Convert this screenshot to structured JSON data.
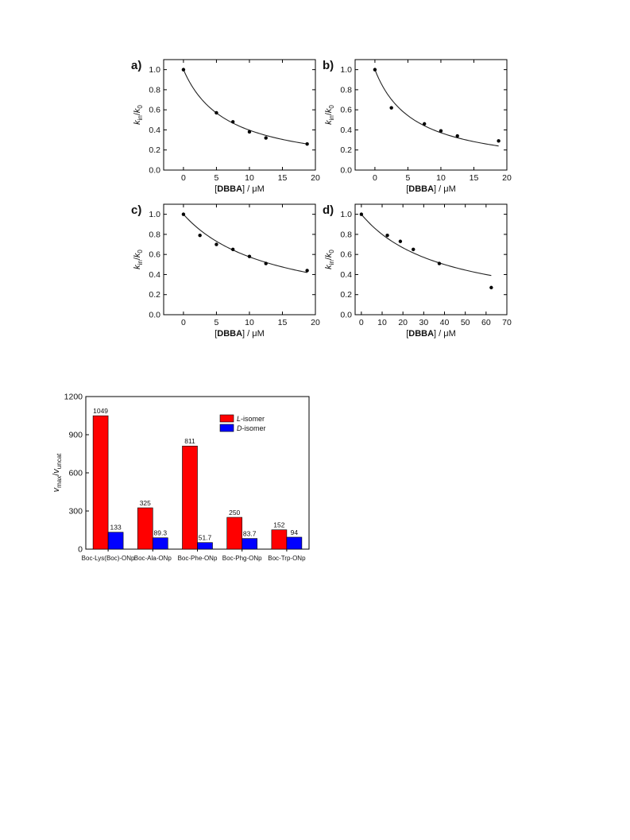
{
  "chart_data": [
    {
      "type": "scatter",
      "panel": "a)",
      "xlabel": "[DBBA] / μM",
      "ylabel": "kin/k0",
      "xlim": [
        -3,
        20
      ],
      "ylim": [
        0,
        1.1
      ],
      "xticks": [
        "0",
        "5",
        "10",
        "15",
        "20"
      ],
      "yticks": [
        "0.0",
        "0.2",
        "0.4",
        "0.6",
        "0.8",
        "1.0"
      ],
      "points": [
        {
          "x": 0,
          "y": 1.0
        },
        {
          "x": 5,
          "y": 0.57
        },
        {
          "x": 7.5,
          "y": 0.48
        },
        {
          "x": 10,
          "y": 0.38
        },
        {
          "x": 12.5,
          "y": 0.32
        },
        {
          "x": 18.75,
          "y": 0.26
        }
      ],
      "fit": {
        "model": "hyperbolic",
        "x_max": 18.75,
        "y_end": 0.26
      }
    },
    {
      "type": "scatter",
      "panel": "b)",
      "xlabel": "[DBBA] / μM",
      "ylabel": "kin/k0",
      "xlim": [
        -3,
        20
      ],
      "ylim": [
        0,
        1.1
      ],
      "xticks": [
        "0",
        "5",
        "10",
        "15",
        "20"
      ],
      "yticks": [
        "0.0",
        "0.2",
        "0.4",
        "0.6",
        "0.8",
        "1.0"
      ],
      "points": [
        {
          "x": 0,
          "y": 1.0
        },
        {
          "x": 2.5,
          "y": 0.62
        },
        {
          "x": 7.5,
          "y": 0.46
        },
        {
          "x": 10,
          "y": 0.39
        },
        {
          "x": 12.5,
          "y": 0.34
        },
        {
          "x": 18.75,
          "y": 0.29
        }
      ],
      "fit": {
        "model": "hyperbolic",
        "x_max": 18.75,
        "y_end": 0.24
      }
    },
    {
      "type": "scatter",
      "panel": "c)",
      "xlabel": "[DBBA] / μM",
      "ylabel": "kin/k0",
      "xlim": [
        -3,
        20
      ],
      "ylim": [
        0,
        1.1
      ],
      "xticks": [
        "0",
        "5",
        "10",
        "15",
        "20"
      ],
      "yticks": [
        "0.0",
        "0.2",
        "0.4",
        "0.6",
        "0.8",
        "1.0"
      ],
      "points": [
        {
          "x": 0,
          "y": 1.0
        },
        {
          "x": 2.5,
          "y": 0.79
        },
        {
          "x": 5,
          "y": 0.7
        },
        {
          "x": 7.5,
          "y": 0.65
        },
        {
          "x": 10,
          "y": 0.58
        },
        {
          "x": 12.5,
          "y": 0.51
        },
        {
          "x": 18.75,
          "y": 0.44
        }
      ],
      "fit": {
        "model": "hyperbolic",
        "x_max": 18.75,
        "y_end": 0.42
      }
    },
    {
      "type": "scatter",
      "panel": "d)",
      "xlabel": "[DBBA] / μM",
      "ylabel": "kin/k0",
      "xlim": [
        -3,
        70
      ],
      "ylim": [
        0,
        1.1
      ],
      "xticks": [
        "0",
        "10",
        "20",
        "30",
        "40",
        "50",
        "60",
        "70"
      ],
      "yticks": [
        "0.0",
        "0.2",
        "0.4",
        "0.6",
        "0.8",
        "1.0"
      ],
      "points": [
        {
          "x": 0,
          "y": 1.0
        },
        {
          "x": 12.5,
          "y": 0.79
        },
        {
          "x": 18.75,
          "y": 0.73
        },
        {
          "x": 25,
          "y": 0.65
        },
        {
          "x": 37.5,
          "y": 0.51
        },
        {
          "x": 62.5,
          "y": 0.27
        }
      ],
      "fit": {
        "model": "hyperbolic",
        "x_max": 62.5,
        "y_end": 0.39
      }
    },
    {
      "type": "bar",
      "ylabel": "vmax/vuncat",
      "ylim": [
        0,
        1200
      ],
      "yticks": [
        "0",
        "300",
        "600",
        "900",
        "1200"
      ],
      "categories": [
        "Boc-Lys(Boc)-ONp",
        "Boc-Ala-ONp",
        "Boc-Phe-ONp",
        "Boc-Phg-ONp",
        "Boc-Trp-ONp"
      ],
      "series": [
        {
          "name": "L-isomer",
          "prefix": "L",
          "suffix": "-isomer",
          "color": "#ff0000",
          "values": [
            1049,
            325,
            811,
            250,
            152
          ],
          "labels": [
            "1049",
            "325",
            "811",
            "250",
            "152"
          ]
        },
        {
          "name": "D-isomer",
          "prefix": "D",
          "suffix": "-isomer",
          "color": "#0000ff",
          "values": [
            133,
            89.3,
            51.7,
            83.7,
            94
          ],
          "labels": [
            "133",
            "89.3",
            "51.7",
            "83.7",
            "94"
          ]
        }
      ],
      "legend": "top-right"
    }
  ]
}
